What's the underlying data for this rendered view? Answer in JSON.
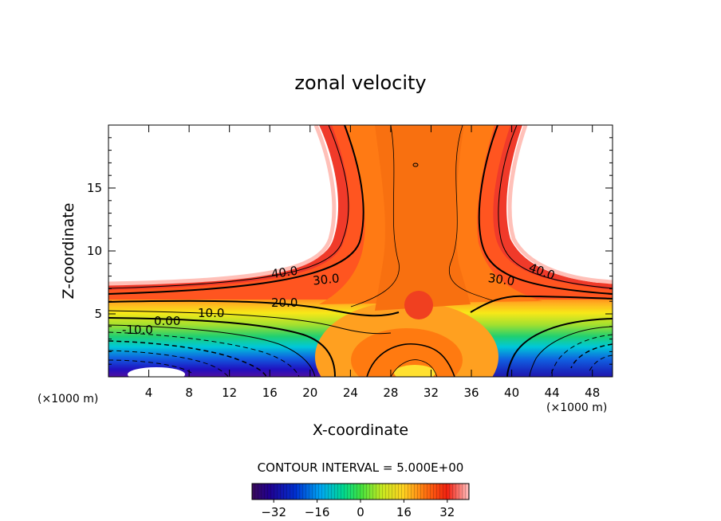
{
  "chart_data": {
    "type": "contour",
    "title": "zonal velocity",
    "xlabel": "X-coordinate",
    "ylabel": "Z-coordinate",
    "x_unit_note": "(×1000 m)",
    "xlim": [
      0,
      50
    ],
    "ylim": [
      0,
      20
    ],
    "x_ticks": [
      4,
      8,
      12,
      16,
      20,
      24,
      28,
      32,
      36,
      40,
      44,
      48
    ],
    "y_ticks": [
      5,
      10,
      15
    ],
    "contour_interval_text": "CONTOUR INTERVAL = 5.000E+00",
    "contour_labels": [
      "40.0",
      "30.0",
      "20.0",
      "10.0",
      "0.00",
      "-10.0",
      "40.0",
      "30.0"
    ],
    "colorbar": {
      "range": [
        -40,
        40
      ],
      "ticks": [
        -32,
        -16,
        0,
        16,
        32
      ],
      "tick_labels": [
        "−32",
        "−16",
        "0",
        "16",
        "32"
      ]
    }
  }
}
